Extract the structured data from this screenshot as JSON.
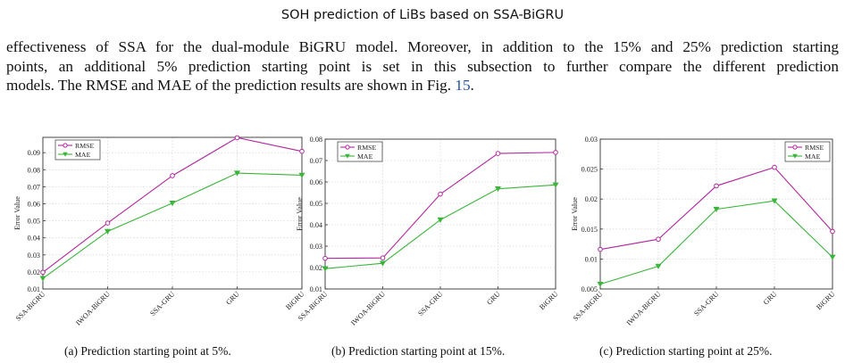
{
  "header": {
    "title": "SOH prediction of LiBs based on SSA-BiGRU"
  },
  "paragraph": {
    "lines": [
      "effectiveness of SSA for the dual-module BiGRU model. Moreover, in addition to the 15% and 25% prediction starting",
      "points, an additional 5% prediction starting point is set in this subsection to further compare the different prediction"
    ],
    "last_line_prefix": "models. The RMSE and MAE of the prediction results are shown in Fig. ",
    "fig_ref": "15",
    "last_line_suffix": "."
  },
  "colors": {
    "rmse": "#b0279f",
    "mae": "#3ab53a",
    "ref": "#1f4fa0"
  },
  "chart_data": [
    {
      "type": "line",
      "caption": "(a) Prediction starting point at 5%.",
      "categories": [
        "SSA-BiGRU",
        "IWOA-BiGRU",
        "SSA-GRU",
        "GRU",
        "BiGRU"
      ],
      "ylabel": "Error Value",
      "ylim": [
        0.01,
        0.099
      ],
      "yticks": [
        0.01,
        0.02,
        0.03,
        0.04,
        0.05,
        0.06,
        0.07,
        0.08,
        0.09
      ],
      "ytick_labels": [
        "0.01",
        "0.02",
        "0.03",
        "0.04",
        "0.05",
        "0.06",
        "0.07",
        "0.08",
        "0.09"
      ],
      "grid": true,
      "legend": "top-left",
      "series": [
        {
          "name": "RMSE",
          "marker": "circle",
          "values": [
            0.0198,
            0.0487,
            0.0765,
            0.0988,
            0.0908
          ]
        },
        {
          "name": "MAE",
          "marker": "triangle-down",
          "values": [
            0.0162,
            0.0438,
            0.0604,
            0.078,
            0.0768
          ]
        }
      ]
    },
    {
      "type": "line",
      "caption": "(b) Prediction starting point at 15%.",
      "categories": [
        "SSA-BiGRU",
        "IWOA-BiGRU",
        "SSA-GRU",
        "GRU",
        "BiGRU"
      ],
      "ylabel": "Error Value",
      "ylim": [
        0.01,
        0.08
      ],
      "yticks": [
        0.01,
        0.02,
        0.03,
        0.04,
        0.05,
        0.06,
        0.07,
        0.08
      ],
      "ytick_labels": [
        "0.01",
        "0.02",
        "0.03",
        "0.04",
        "0.05",
        "0.06",
        "0.07",
        "0.08"
      ],
      "grid": true,
      "legend": "top-left",
      "series": [
        {
          "name": "RMSE",
          "marker": "circle",
          "values": [
            0.0243,
            0.0245,
            0.0543,
            0.0733,
            0.0738
          ]
        },
        {
          "name": "MAE",
          "marker": "triangle-down",
          "values": [
            0.0195,
            0.022,
            0.0423,
            0.0568,
            0.0586
          ]
        }
      ]
    },
    {
      "type": "line",
      "caption": "(c) Prediction starting point at 25%.",
      "categories": [
        "SSA-BiGRU",
        "IWOA-BiGRU",
        "SSA-GRU",
        "GRU",
        "BiGRU"
      ],
      "ylabel": "Error Value",
      "ylim": [
        0.005,
        0.03
      ],
      "yticks": [
        0.005,
        0.01,
        0.015,
        0.02,
        0.025,
        0.03
      ],
      "ytick_labels": [
        "0.005",
        "0.01",
        "0.015",
        "0.02",
        "0.025",
        "0.03"
      ],
      "grid": true,
      "legend": "top-right",
      "series": [
        {
          "name": "RMSE",
          "marker": "circle",
          "values": [
            0.0116,
            0.0133,
            0.0222,
            0.0253,
            0.0146
          ]
        },
        {
          "name": "MAE",
          "marker": "triangle-down",
          "values": [
            0.0058,
            0.0088,
            0.0183,
            0.0197,
            0.0103
          ]
        }
      ]
    }
  ]
}
